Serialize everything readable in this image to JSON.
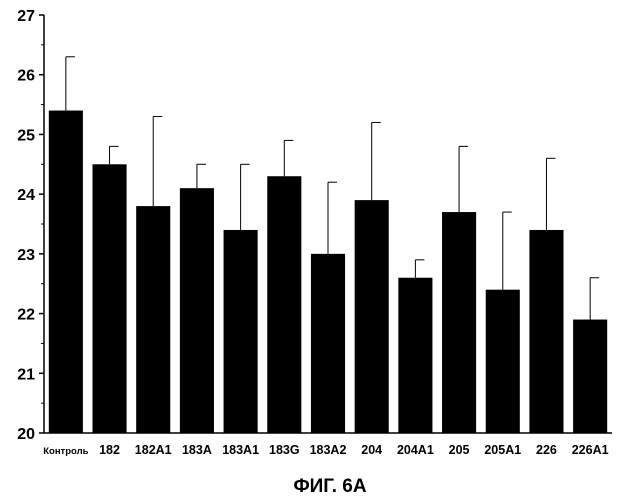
{
  "figure": {
    "caption": "ФИГ. 6А"
  },
  "chart_data": {
    "type": "bar",
    "title": "",
    "xlabel": "",
    "ylabel": "",
    "ylim": [
      20,
      27
    ],
    "yticks": [
      20,
      21,
      22,
      23,
      24,
      25,
      26,
      27
    ],
    "grid": false,
    "categories": [
      "Контроль",
      "182",
      "182A1",
      "183A",
      "183A1",
      "183G",
      "183A2",
      "204",
      "204A1",
      "205",
      "205A1",
      "226",
      "226A1"
    ],
    "values": [
      25.4,
      24.5,
      23.8,
      24.1,
      23.4,
      24.3,
      23.0,
      23.9,
      22.6,
      23.7,
      22.4,
      23.4,
      21.9
    ],
    "errors": [
      0.9,
      0.3,
      1.5,
      0.4,
      1.1,
      0.6,
      1.2,
      1.3,
      0.3,
      1.1,
      1.3,
      1.2,
      0.7
    ],
    "bar_color": "#000000",
    "error_bar_style": "upper-only"
  }
}
